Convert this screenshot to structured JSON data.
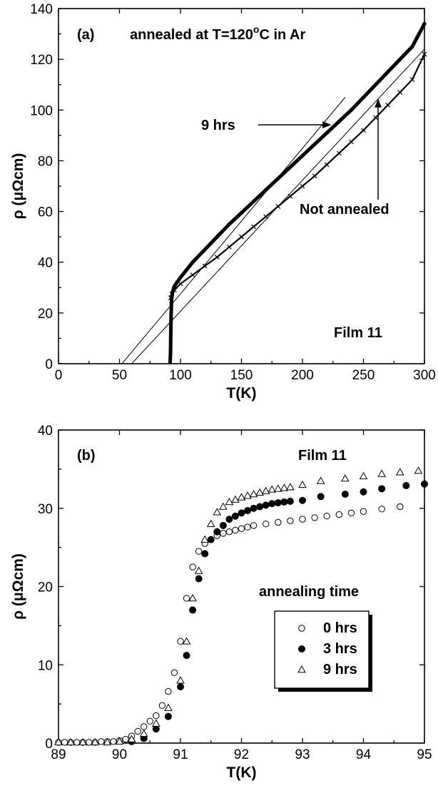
{
  "chart_data": [
    {
      "type": "scatter",
      "panel_label": "(a)",
      "title": "annealed at T=120°C in Ar",
      "title_parts": {
        "pre": "annealed at T=120",
        "sup": "o",
        "post": "C in Ar"
      },
      "xlabel": "T(K)",
      "ylabel": "ρ (μΩcm)",
      "xlim": [
        0,
        300
      ],
      "ylim": [
        0,
        140
      ],
      "xticks": [
        0,
        50,
        100,
        150,
        200,
        250,
        300
      ],
      "yticks": [
        0,
        20,
        40,
        60,
        80,
        100,
        120,
        140
      ],
      "grid": false,
      "annotations": [
        {
          "text": "9 hrs",
          "points_to": [
            220,
            95
          ]
        },
        {
          "text": "Not annealed",
          "points_to": [
            262,
            103
          ]
        },
        {
          "text": "Film 11"
        }
      ],
      "series": [
        {
          "name": "9 hrs",
          "marker": "filled-circle",
          "x": [
            91.5,
            91.8,
            92,
            92.3,
            92.6,
            93,
            94,
            95,
            97,
            100,
            105,
            110,
            120,
            130,
            140,
            150,
            160,
            170,
            180,
            190,
            200,
            210,
            220,
            230,
            240,
            250,
            260,
            270,
            280,
            290,
            300
          ],
          "y": [
            0.5,
            4,
            10,
            18,
            24,
            27,
            29,
            30.5,
            32,
            34,
            37,
            40,
            45,
            50,
            55,
            59.5,
            64,
            68.5,
            73,
            77.5,
            82,
            86.5,
            91,
            95.5,
            100,
            105,
            110,
            115,
            120,
            125,
            134
          ]
        },
        {
          "name": "Not annealed",
          "marker": "small-cross",
          "x": [
            92,
            93,
            95,
            100,
            110,
            120,
            130,
            140,
            150,
            160,
            170,
            180,
            190,
            200,
            210,
            220,
            230,
            240,
            250,
            260,
            270,
            280,
            290,
            300
          ],
          "y": [
            26,
            27.5,
            29,
            31.5,
            35,
            38.5,
            42,
            46,
            50,
            54,
            58,
            62,
            66,
            70,
            74,
            78.5,
            83,
            87.5,
            92,
            97,
            102,
            107,
            112,
            122
          ]
        }
      ],
      "fit_lines": [
        {
          "x": [
            52,
            235
          ],
          "y": [
            0,
            105
          ]
        },
        {
          "x": [
            60,
            300
          ],
          "y": [
            0,
            124
          ]
        }
      ]
    },
    {
      "type": "scatter",
      "panel_label": "(b)",
      "title": "Film 11",
      "xlabel": "T(K)",
      "ylabel": "ρ (μΩcm)",
      "xlim": [
        89,
        95
      ],
      "ylim": [
        0,
        40
      ],
      "xticks": [
        89,
        90,
        91,
        92,
        93,
        94,
        95
      ],
      "yticks": [
        0,
        10,
        20,
        30,
        40
      ],
      "grid": false,
      "legend_title": "annealing time",
      "legend_position": "center-right",
      "series": [
        {
          "name": "0 hrs",
          "marker": "open-circle",
          "x": [
            89.0,
            89.1,
            89.2,
            89.3,
            89.4,
            89.5,
            89.6,
            89.7,
            89.8,
            89.9,
            90.0,
            90.1,
            90.2,
            90.3,
            90.4,
            90.5,
            90.6,
            90.7,
            90.8,
            90.9,
            91.0,
            91.1,
            91.2,
            91.3,
            91.4,
            91.5,
            91.6,
            91.7,
            91.8,
            91.9,
            92.0,
            92.1,
            92.2,
            92.4,
            92.6,
            92.8,
            93.0,
            93.2,
            93.4,
            93.6,
            93.8,
            94.0,
            94.3,
            94.6
          ],
          "y": [
            0.1,
            0.1,
            0.1,
            0.1,
            0.1,
            0.1,
            0.1,
            0.2,
            0.2,
            0.2,
            0.3,
            0.5,
            0.9,
            1.5,
            2.1,
            2.8,
            3.5,
            4.8,
            6.6,
            9,
            13,
            18.5,
            22.5,
            24.5,
            25.5,
            26,
            26.5,
            26.8,
            27,
            27.2,
            27.4,
            27.6,
            27.8,
            28,
            28.2,
            28.4,
            28.6,
            28.8,
            29,
            29.2,
            29.4,
            29.6,
            29.9,
            30.2
          ]
        },
        {
          "name": "3 hrs",
          "marker": "filled-circle",
          "x": [
            90.2,
            90.4,
            90.6,
            90.8,
            91.0,
            91.1,
            91.2,
            91.3,
            91.4,
            91.5,
            91.6,
            91.7,
            91.8,
            91.9,
            92.0,
            92.1,
            92.2,
            92.3,
            92.4,
            92.5,
            92.6,
            92.7,
            92.8,
            93.0,
            93.3,
            93.7,
            94.0,
            94.3,
            94.7,
            95.0
          ],
          "y": [
            0.2,
            0.6,
            1.8,
            3.4,
            7.2,
            11.2,
            17,
            21,
            24.2,
            26,
            27,
            27.8,
            28.6,
            29,
            29.4,
            29.7,
            30,
            30.2,
            30.4,
            30.6,
            30.7,
            30.8,
            30.9,
            31,
            31.5,
            31.8,
            32.1,
            32.5,
            32.9,
            33.1
          ]
        },
        {
          "name": "9 hrs",
          "marker": "open-triangle",
          "x": [
            89.0,
            89.2,
            89.4,
            89.6,
            89.8,
            90.0,
            90.2,
            90.4,
            90.6,
            90.8,
            91.0,
            91.1,
            91.2,
            91.3,
            91.4,
            91.5,
            91.6,
            91.7,
            91.8,
            91.9,
            92.0,
            92.1,
            92.2,
            92.3,
            92.4,
            92.5,
            92.6,
            92.7,
            92.8,
            93.0,
            93.3,
            93.7,
            94.0,
            94.3,
            94.6,
            94.9
          ],
          "y": [
            0.1,
            0.1,
            0.1,
            0.1,
            0.1,
            0.2,
            0.5,
            1.2,
            2.5,
            4.5,
            8,
            13,
            18.5,
            22,
            26,
            28,
            29.5,
            30.2,
            30.8,
            31.1,
            31.4,
            31.6,
            31.8,
            32,
            32.2,
            32.4,
            32.5,
            32.6,
            32.7,
            33,
            33.5,
            33.8,
            34.1,
            34.4,
            34.6,
            34.8
          ]
        }
      ]
    }
  ]
}
